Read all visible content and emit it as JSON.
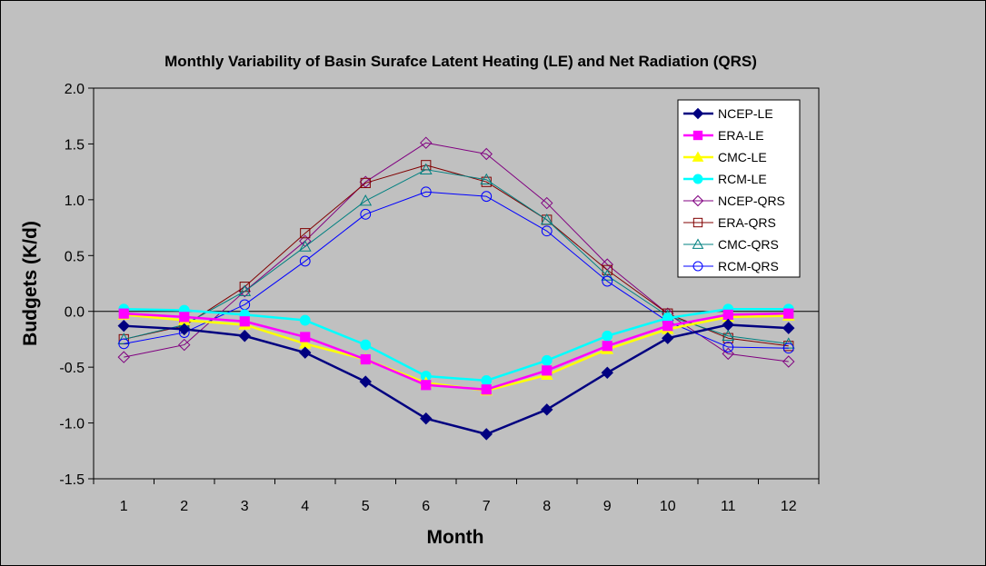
{
  "chart_data": {
    "type": "line",
    "title": "Monthly Variability of Basin Surafce Latent Heating (LE) and Net Radiation (QRS)",
    "xlabel": "Month",
    "ylabel": "Budgets (K/d)",
    "x": [
      1,
      2,
      3,
      4,
      5,
      6,
      7,
      8,
      9,
      10,
      11,
      12
    ],
    "x_tick_labels": [
      "1",
      "2",
      "3",
      "4",
      "5",
      "6",
      "7",
      "8",
      "9",
      "10",
      "11",
      "12"
    ],
    "ylim": [
      -1.5,
      2.0
    ],
    "y_ticks": [
      2.0,
      1.5,
      1.0,
      0.5,
      0.0,
      -0.5,
      -1.0,
      -1.5
    ],
    "y_tick_labels": [
      "2.0",
      "1.5",
      "1.0",
      "0.5",
      "0.0",
      "-0.5",
      "-1.0",
      "-1.5"
    ],
    "grid": false,
    "legend_position": "top-right",
    "background": "#c0c0c0",
    "series": [
      {
        "name": "NCEP-LE",
        "color": "#000080",
        "marker": "diamond",
        "filled": true,
        "line_width": 2.5,
        "values": [
          -0.13,
          -0.16,
          -0.22,
          -0.37,
          -0.63,
          -0.96,
          -1.1,
          -0.88,
          -0.55,
          -0.24,
          -0.12,
          -0.15
        ]
      },
      {
        "name": "ERA-LE",
        "color": "#ff00ff",
        "marker": "square",
        "filled": true,
        "line_width": 2.5,
        "values": [
          -0.02,
          -0.05,
          -0.09,
          -0.23,
          -0.43,
          -0.66,
          -0.7,
          -0.53,
          -0.31,
          -0.13,
          -0.03,
          -0.02
        ]
      },
      {
        "name": "CMC-LE",
        "color": "#ffff00",
        "marker": "triangle",
        "filled": true,
        "line_width": 2.5,
        "values": [
          -0.03,
          -0.08,
          -0.12,
          -0.29,
          -0.43,
          -0.64,
          -0.71,
          -0.57,
          -0.34,
          -0.16,
          -0.05,
          -0.04
        ]
      },
      {
        "name": "RCM-LE",
        "color": "#00ffff",
        "marker": "circle",
        "filled": true,
        "line_width": 2.5,
        "values": [
          0.02,
          0.01,
          -0.03,
          -0.08,
          -0.3,
          -0.58,
          -0.62,
          -0.44,
          -0.22,
          -0.06,
          0.02,
          0.02
        ]
      },
      {
        "name": "NCEP-QRS",
        "color": "#800080",
        "marker": "diamond",
        "filled": false,
        "line_width": 1,
        "values": [
          -0.41,
          -0.3,
          0.18,
          0.63,
          1.16,
          1.51,
          1.41,
          0.97,
          0.42,
          -0.02,
          -0.38,
          -0.45
        ]
      },
      {
        "name": "ERA-QRS",
        "color": "#800000",
        "marker": "square",
        "filled": false,
        "line_width": 1,
        "values": [
          -0.25,
          -0.13,
          0.22,
          0.7,
          1.15,
          1.31,
          1.16,
          0.82,
          0.37,
          -0.02,
          -0.24,
          -0.31
        ]
      },
      {
        "name": "CMC-QRS",
        "color": "#008080",
        "marker": "triangle",
        "filled": false,
        "line_width": 1,
        "values": [
          -0.25,
          -0.12,
          0.18,
          0.58,
          0.99,
          1.27,
          1.18,
          0.82,
          0.32,
          -0.04,
          -0.22,
          -0.29
        ]
      },
      {
        "name": "RCM-QRS",
        "color": "#0000ff",
        "marker": "circle",
        "filled": false,
        "line_width": 1,
        "values": [
          -0.29,
          -0.19,
          0.06,
          0.45,
          0.87,
          1.07,
          1.03,
          0.72,
          0.27,
          -0.09,
          -0.32,
          -0.33
        ]
      }
    ]
  }
}
